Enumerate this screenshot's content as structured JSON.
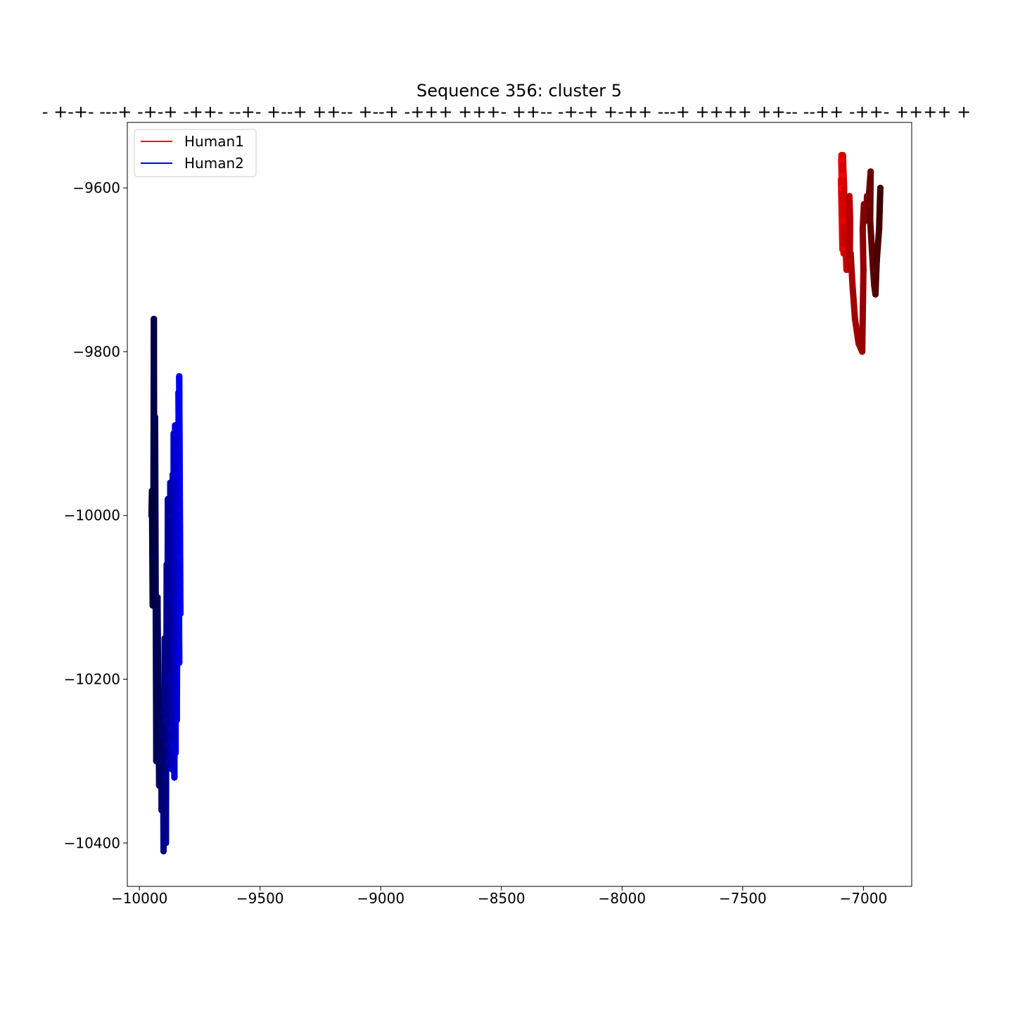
{
  "chart_data": {
    "type": "line",
    "title": "Sequence 356: cluster 5",
    "subtitle": "- +-+- ---+ -+-+ -++- --+- +--+ ++-- +--+ -+++ +++- ++-- -+-+ +-++ ---+ ++++ ++-- --++ -++- ++++ +",
    "xlabel": "",
    "ylabel": "",
    "xlim": [
      -10050,
      -6800
    ],
    "ylim": [
      -10453,
      -9520
    ],
    "xticks": [
      -10000,
      -9500,
      -9000,
      -8500,
      -8000,
      -7500,
      -7000
    ],
    "yticks": [
      -9600,
      -9800,
      -10000,
      -10200,
      -10400
    ],
    "xtick_labels": [
      "−10000",
      "−9500",
      "−9000",
      "−8500",
      "−8000",
      "−7500",
      "−7000"
    ],
    "ytick_labels": [
      "−9600",
      "−9800",
      "−10000",
      "−10200",
      "−10400"
    ],
    "grid": false,
    "legend_position": "top-left",
    "series": [
      {
        "name": "Human1",
        "legend_color": "#ff0000",
        "color_start": "#ff0000",
        "color_end": "#3a0000",
        "x": [
          -7090,
          -7088,
          -7092,
          -7086,
          -7091,
          -7087,
          -7093,
          -7089,
          -7085,
          -7080,
          -7082,
          -7078,
          -7070,
          -7060,
          -7058,
          -7055,
          -7057,
          -7053,
          -7045,
          -7035,
          -7020,
          -7005,
          -7000,
          -7003,
          -6998,
          -6996,
          -6990,
          -6985,
          -6980,
          -6975,
          -6970,
          -6972,
          -6968,
          -6960,
          -6955,
          -6950,
          -6945,
          -6940,
          -6935,
          -6933,
          -6930
        ],
        "y": [
          -9600,
          -9585,
          -9565,
          -9640,
          -9560,
          -9675,
          -9590,
          -9620,
          -9560,
          -9600,
          -9680,
          -9650,
          -9700,
          -9690,
          -9610,
          -9640,
          -9700,
          -9680,
          -9720,
          -9760,
          -9790,
          -9800,
          -9700,
          -9650,
          -9620,
          -9630,
          -9640,
          -9610,
          -9620,
          -9600,
          -9580,
          -9640,
          -9660,
          -9700,
          -9720,
          -9730,
          -9690,
          -9670,
          -9650,
          -9630,
          -9600
        ]
      },
      {
        "name": "Human2",
        "legend_color": "#0000ff",
        "color_start": "#0000ff",
        "color_end": "#00003a",
        "x": [
          -9830,
          -9835,
          -9832,
          -9838,
          -9835,
          -9840,
          -9845,
          -9848,
          -9850,
          -9852,
          -9855,
          -9858,
          -9860,
          -9862,
          -9865,
          -9867,
          -9870,
          -9872,
          -9875,
          -9878,
          -9880,
          -9882,
          -9885,
          -9887,
          -9890,
          -9893,
          -9895,
          -9898,
          -9900,
          -9902,
          -9905,
          -9908,
          -9910,
          -9913,
          -9915,
          -9918,
          -9920,
          -9925,
          -9930,
          -9935,
          -9938,
          -9940,
          -9942,
          -9945,
          -9948,
          -9950
        ],
        "y": [
          -10120,
          -9830,
          -10050,
          -9850,
          -10180,
          -9950,
          -10250,
          -9920,
          -10290,
          -9890,
          -10320,
          -9900,
          -10280,
          -9950,
          -10310,
          -10000,
          -10260,
          -9960,
          -10300,
          -10100,
          -10200,
          -9980,
          -10280,
          -10060,
          -10400,
          -10250,
          -10150,
          -10320,
          -10410,
          -10240,
          -10270,
          -10360,
          -10260,
          -10300,
          -10250,
          -10330,
          -10280,
          -10100,
          -10300,
          -9880,
          -10050,
          -9760,
          -10000,
          -10110,
          -9970,
          -10000
        ]
      }
    ]
  }
}
